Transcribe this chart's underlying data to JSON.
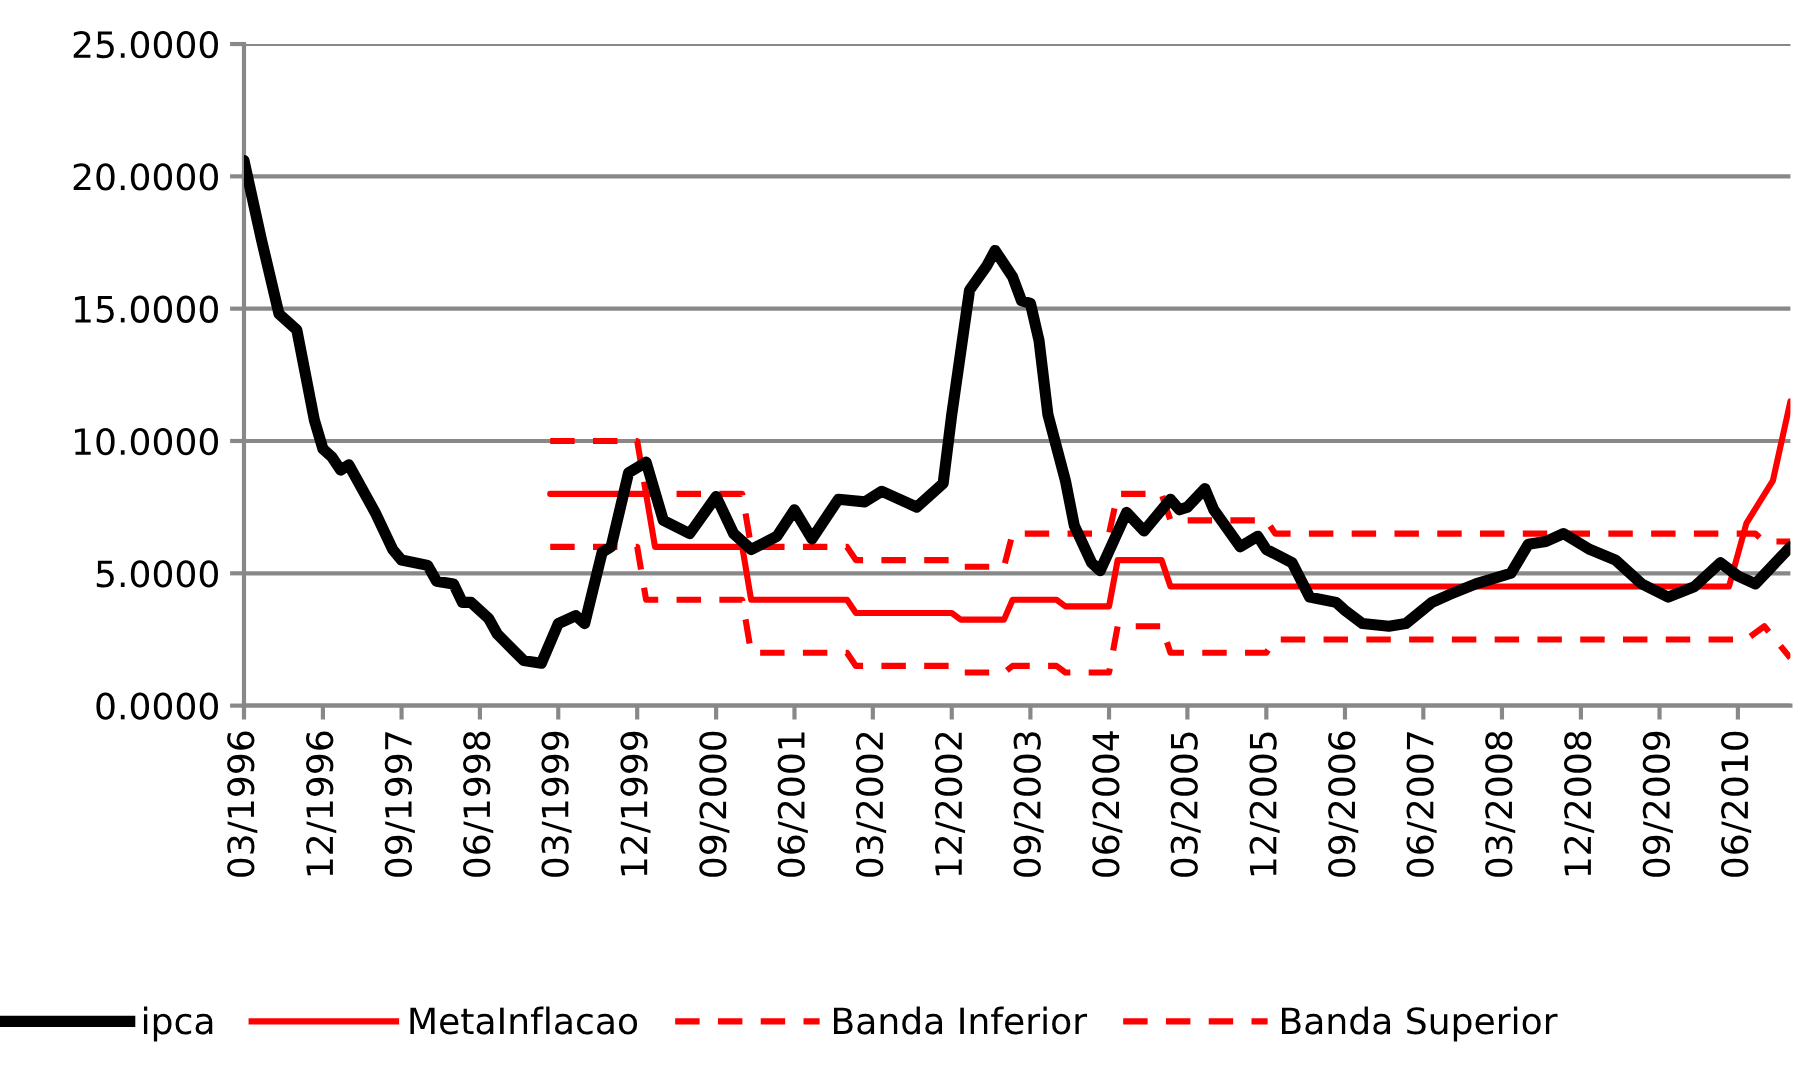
{
  "chart_data": {
    "type": "line",
    "xlim": [
      "1996-03",
      "2010-12"
    ],
    "xticks": [
      {
        "value": "1996-03",
        "label": "03/1996"
      },
      {
        "value": "1996-12",
        "label": "12/1996"
      },
      {
        "value": "1997-09",
        "label": "09/1997"
      },
      {
        "value": "1998-06",
        "label": "06/1998"
      },
      {
        "value": "1999-03",
        "label": "03/1999"
      },
      {
        "value": "1999-12",
        "label": "12/1999"
      },
      {
        "value": "2000-09",
        "label": "09/2000"
      },
      {
        "value": "2001-06",
        "label": "06/2001"
      },
      {
        "value": "2002-03",
        "label": "03/2002"
      },
      {
        "value": "2002-12",
        "label": "12/2002"
      },
      {
        "value": "2003-09",
        "label": "09/2003"
      },
      {
        "value": "2004-06",
        "label": "06/2004"
      },
      {
        "value": "2005-03",
        "label": "03/2005"
      },
      {
        "value": "2005-12",
        "label": "12/2005"
      },
      {
        "value": "2006-09",
        "label": "09/2006"
      },
      {
        "value": "2007-06",
        "label": "06/2007"
      },
      {
        "value": "2008-03",
        "label": "03/2008"
      },
      {
        "value": "2008-12",
        "label": "12/2008"
      },
      {
        "value": "2009-09",
        "label": "09/2009"
      },
      {
        "value": "2010-06",
        "label": "06/2010"
      }
    ],
    "ylim": [
      0,
      25
    ],
    "yticks": [
      {
        "value": 0,
        "label": "0.0000"
      },
      {
        "value": 5,
        "label": "5.0000"
      },
      {
        "value": 10,
        "label": "10.0000"
      },
      {
        "value": 15,
        "label": "15.0000"
      },
      {
        "value": 20,
        "label": "20.0000"
      },
      {
        "value": 25,
        "label": "25.0000"
      }
    ],
    "grid": "y",
    "legend": "bottom",
    "marker": "none",
    "series": [
      {
        "name": "ipca",
        "color": "#000000",
        "line_style": "solid",
        "x": [
          "1996-03",
          "1996-05",
          "1996-07",
          "1996-09",
          "1996-11",
          "1996-12",
          "1997-01",
          "1997-02",
          "1997-03",
          "1997-06",
          "1997-08",
          "1997-09",
          "1997-12",
          "1998-01",
          "1998-03",
          "1998-04",
          "1998-05",
          "1998-07",
          "1998-08",
          "1998-11",
          "1999-01",
          "1999-03",
          "1999-05",
          "1999-06",
          "1999-08",
          "1999-09",
          "1999-11",
          "2000-01",
          "2000-03",
          "2000-06",
          "2000-09",
          "2000-11",
          "2001-01",
          "2001-04",
          "2001-06",
          "2001-08",
          "2001-11",
          "2002-02",
          "2002-04",
          "2002-08",
          "2002-11",
          "2002-12",
          "2003-02",
          "2003-04",
          "2003-05",
          "2003-07",
          "2003-08",
          "2003-09",
          "2003-10",
          "2003-11",
          "2004-01",
          "2004-02",
          "2004-04",
          "2004-05",
          "2004-08",
          "2004-10",
          "2005-01",
          "2005-02",
          "2005-03",
          "2005-05",
          "2005-06",
          "2005-09",
          "2005-11",
          "2005-12",
          "2006-03",
          "2006-05",
          "2006-08",
          "2006-09",
          "2006-11",
          "2007-02",
          "2007-04",
          "2007-07",
          "2007-09",
          "2007-12",
          "2008-04",
          "2008-06",
          "2008-08",
          "2008-10",
          "2009-01",
          "2009-04",
          "2009-07",
          "2009-10",
          "2010-01",
          "2010-04",
          "2010-06",
          "2010-08",
          "2010-10",
          "2010-12"
        ],
        "values": [
          20.6,
          17.6,
          14.8,
          14.2,
          10.8,
          9.7,
          9.4,
          8.9,
          9.1,
          7.3,
          5.9,
          5.5,
          5.3,
          4.7,
          4.6,
          3.9,
          3.9,
          3.3,
          2.7,
          1.7,
          1.6,
          3.1,
          3.4,
          3.1,
          5.8,
          6.0,
          8.8,
          9.2,
          7.0,
          6.5,
          7.9,
          6.5,
          5.9,
          6.4,
          7.4,
          6.3,
          7.8,
          7.7,
          8.1,
          7.5,
          8.4,
          11.0,
          15.7,
          16.6,
          17.2,
          16.2,
          15.3,
          15.2,
          13.8,
          11.0,
          8.5,
          6.8,
          5.4,
          5.1,
          7.3,
          6.6,
          7.8,
          7.4,
          7.5,
          8.2,
          7.4,
          6.0,
          6.4,
          5.9,
          5.4,
          4.1,
          3.9,
          3.6,
          3.1,
          3.0,
          3.1,
          3.9,
          4.2,
          4.6,
          5.0,
          6.1,
          6.2,
          6.5,
          5.9,
          5.5,
          4.6,
          4.1,
          4.5,
          5.4,
          4.9,
          4.6,
          5.3,
          6.0
        ]
      },
      {
        "name": "MetaInflacao",
        "color": "#ff0000",
        "line_style": "solid",
        "x": [
          "1999-02",
          "2000-01",
          "2000-02",
          "2000-12",
          "2001-01",
          "2001-12",
          "2002-01",
          "2002-12",
          "2003-01",
          "2003-06",
          "2003-07",
          "2003-12",
          "2004-01",
          "2004-06",
          "2004-07",
          "2004-12",
          "2005-01",
          "2010-05",
          "2010-07",
          "2010-10",
          "2010-12"
        ],
        "values": [
          8,
          8,
          6,
          6,
          4,
          4,
          3.5,
          3.5,
          3.25,
          3.25,
          4,
          4,
          3.75,
          3.75,
          5.5,
          5.5,
          4.5,
          4.5,
          6.9,
          8.5,
          11.5
        ]
      },
      {
        "name": "Banda Inferior",
        "color": "#ff0000",
        "line_style": "dashed",
        "x": [
          "1999-02",
          "1999-12",
          "2000-01",
          "2000-12",
          "2001-01",
          "2001-12",
          "2002-01",
          "2002-12",
          "2003-01",
          "2003-06",
          "2003-07",
          "2003-12",
          "2004-01",
          "2004-06",
          "2004-07",
          "2004-12",
          "2005-01",
          "2005-12",
          "2006-01",
          "2010-07",
          "2010-09",
          "2010-12"
        ],
        "values": [
          6,
          6,
          4,
          4,
          2,
          2,
          1.5,
          1.5,
          1.25,
          1.25,
          1.5,
          1.5,
          1.25,
          1.25,
          3,
          3,
          2,
          2,
          2.5,
          2.5,
          3,
          1.8
        ]
      },
      {
        "name": "Banda Superior",
        "color": "#ff0000",
        "line_style": "dashed",
        "x": [
          "1999-02",
          "1999-12",
          "2000-01",
          "2000-12",
          "2001-01",
          "2001-12",
          "2002-01",
          "2002-12",
          "2003-01",
          "2003-06",
          "2003-07",
          "2004-06",
          "2004-07",
          "2004-12",
          "2005-01",
          "2005-12",
          "2006-01",
          "2010-08",
          "2010-09",
          "2010-12"
        ],
        "values": [
          10,
          10,
          8,
          8,
          6,
          6,
          5.5,
          5.5,
          5.25,
          5.25,
          6.5,
          6.5,
          8,
          8,
          7,
          7,
          6.5,
          6.5,
          6.2,
          6.2
        ]
      }
    ]
  }
}
